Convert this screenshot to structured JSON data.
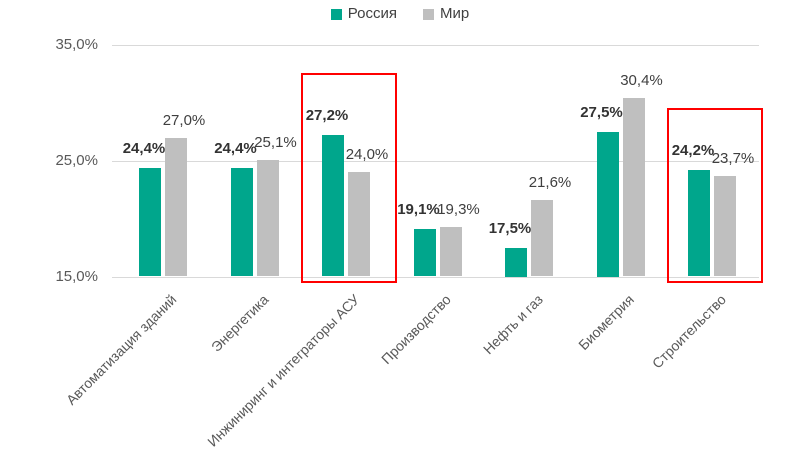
{
  "legend": {
    "items": [
      {
        "label": "Россия",
        "color": "#00A68C"
      },
      {
        "label": "Мир",
        "color": "#BFBFBF"
      }
    ]
  },
  "chart_data": {
    "type": "bar",
    "title": "",
    "categories": [
      "Автоматизация зданий",
      "Энергетика",
      "Инжиниринг и интеграторы АСУ",
      "Производство",
      "Нефть и газ",
      "Биометрия",
      "Строительство"
    ],
    "series": [
      {
        "name": "Россия",
        "color": "#00A68C",
        "values": [
          24.4,
          24.4,
          27.2,
          19.1,
          17.5,
          27.5,
          24.2
        ],
        "labels": [
          "24,4%",
          "24,4%",
          "27,2%",
          "19,1%",
          "17,5%",
          "27,5%",
          "24,2%"
        ],
        "bold_labels": true
      },
      {
        "name": "Мир",
        "color": "#BFBFBF",
        "values": [
          27.0,
          25.1,
          24.0,
          19.3,
          21.6,
          30.4,
          23.7
        ],
        "labels": [
          "27,0%",
          "25,1%",
          "24,0%",
          "19,3%",
          "21,6%",
          "30,4%",
          "23,7%"
        ],
        "bold_labels": false
      }
    ],
    "ylim": [
      15,
      35
    ],
    "yticks": [
      {
        "value": 35,
        "label": "35,0%"
      },
      {
        "value": 25,
        "label": "25,0%"
      },
      {
        "value": 15,
        "label": "15,0%"
      }
    ],
    "grid": true,
    "legend_position": "top",
    "highlighted_indices": [
      2,
      6
    ],
    "highlight_color": "#FF0000",
    "colors": {
      "gridline": "#D9D9D9",
      "axis_text": "#595959",
      "value_text": "#3F3F3F"
    }
  }
}
